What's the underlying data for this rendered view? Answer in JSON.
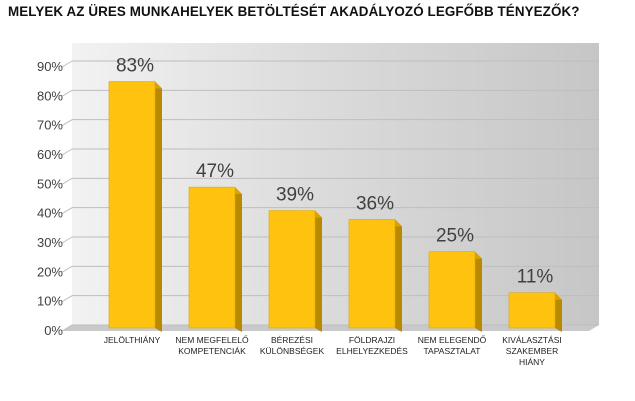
{
  "chart_data": {
    "type": "bar",
    "title": "MELYEK AZ ÜRES MUNKAHELYEK BETÖLTÉSÉT AKADÁLYOZÓ LEGFŐBB TÉNYEZŐK?",
    "categories": [
      [
        "JELÖLTHIÁNY"
      ],
      [
        "NEM MEGFELELŐ",
        "KOMPETENCIÁK"
      ],
      [
        "BÉREZÉSI",
        "KÜLÖNBSÉGEK"
      ],
      [
        "FÖLDRAJZI",
        "ELHELYEZKEDÉS"
      ],
      [
        "NEM ELEGENDŐ",
        "TAPASZTALAT"
      ],
      [
        "KIVÁLASZTÁSI",
        "SZAKEMBER",
        "HIÁNY"
      ]
    ],
    "values": [
      83,
      47,
      39,
      36,
      25,
      11
    ],
    "data_labels": [
      "83%",
      "47%",
      "39%",
      "36%",
      "25%",
      "11%"
    ],
    "y_ticks": [
      "0%",
      "10%",
      "20%",
      "30%",
      "40%",
      "50%",
      "60%",
      "70%",
      "80%",
      "90%"
    ],
    "ylim": [
      0,
      90
    ],
    "xlabel": "",
    "ylabel": "",
    "grid": true,
    "legend": "none",
    "colors": {
      "bar_front": "#FFC20E",
      "bar_side": "#B88A00",
      "bar_top": "#D9A300",
      "background": "#D3D3D3",
      "gridline": "#BEBEBE"
    }
  }
}
